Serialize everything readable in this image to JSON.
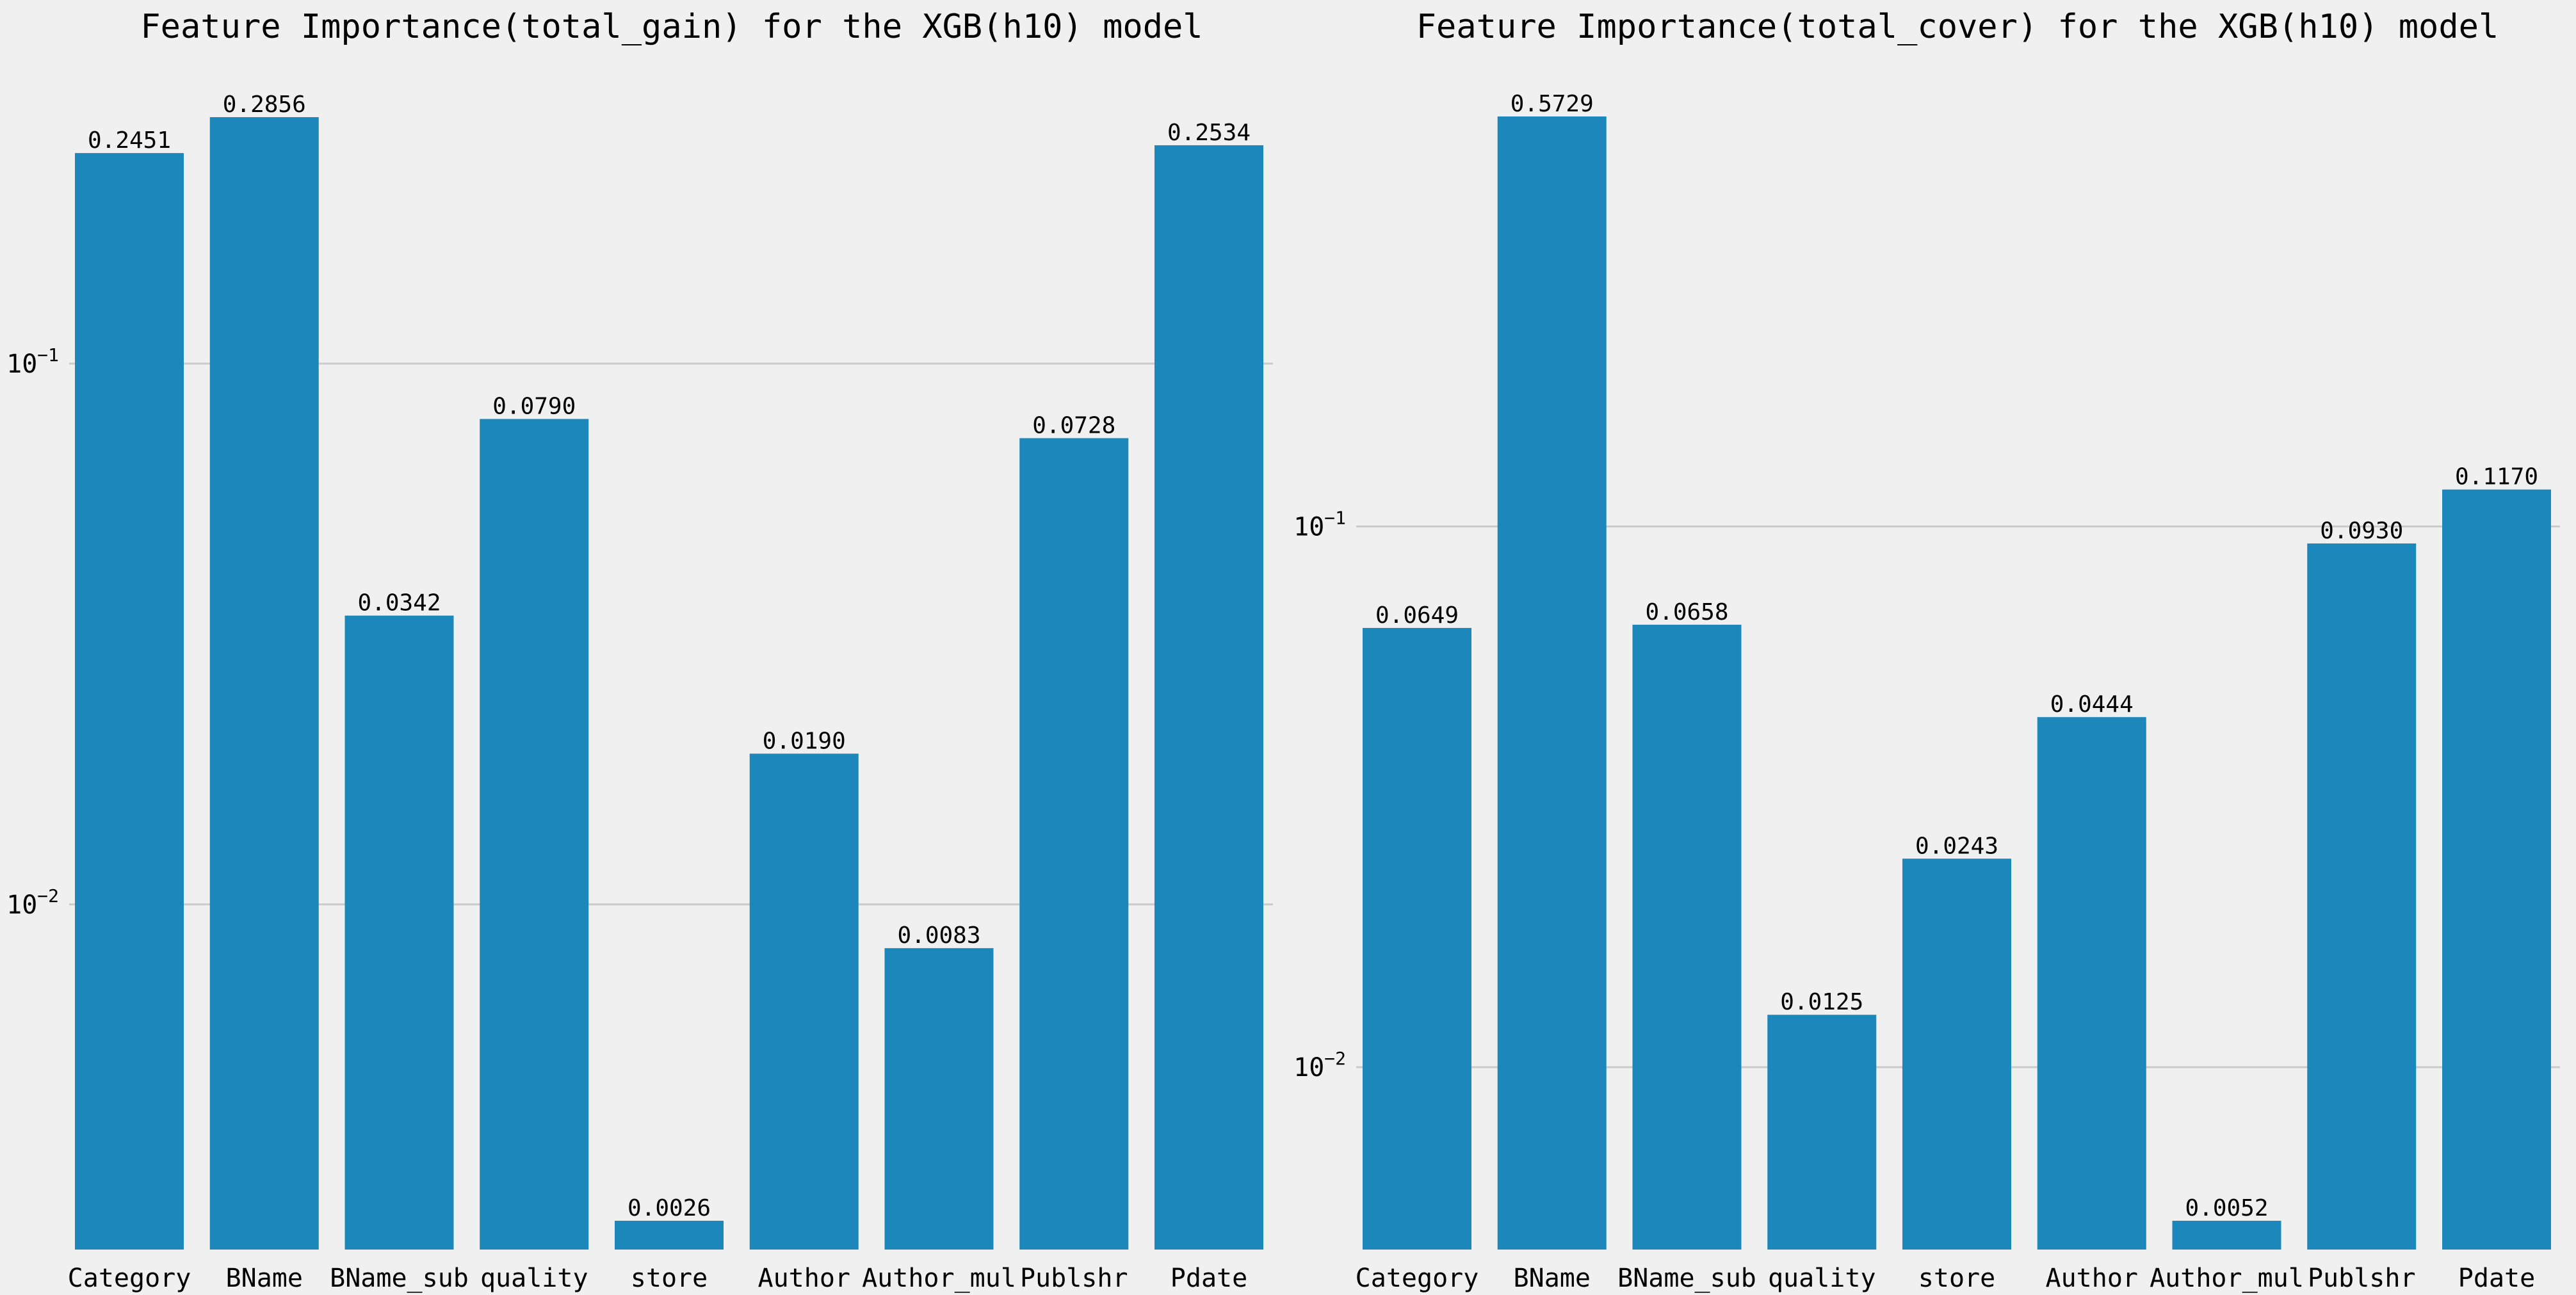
{
  "colors": {
    "background": "#f0f0f0",
    "bar": "#1b87ba",
    "grid": "#cbcbcb",
    "text": "#000000"
  },
  "chart_data": [
    {
      "type": "bar",
      "title": "Feature Importance(total_gain) for the XGB(h10) model",
      "xlabel": "",
      "ylabel": "",
      "yscale": "log",
      "ylim": [
        0.0023,
        0.33
      ],
      "yticks": [
        {
          "value": 0.1,
          "base": "10",
          "exp": "−1"
        },
        {
          "value": 0.01,
          "base": "10",
          "exp": "−2"
        }
      ],
      "grid": "horizontal",
      "categories": [
        "Category",
        "BName",
        "BName_sub",
        "quality",
        "store",
        "Author",
        "Author_mul",
        "Publshr",
        "Pdate"
      ],
      "values": [
        0.2451,
        0.2856,
        0.0342,
        0.079,
        0.0026,
        0.019,
        0.0083,
        0.0728,
        0.2534
      ],
      "labels": [
        "0.2451",
        "0.2856",
        "0.0342",
        "0.0790",
        "0.0026",
        "0.0190",
        "0.0083",
        "0.0728",
        "0.2534"
      ]
    },
    {
      "type": "bar",
      "title": "Feature Importance(total_cover) for the XGB(h10) model",
      "xlabel": "",
      "ylabel": "",
      "yscale": "log",
      "ylim": [
        0.0046,
        0.66
      ],
      "yticks": [
        {
          "value": 0.1,
          "base": "10",
          "exp": "−1"
        },
        {
          "value": 0.01,
          "base": "10",
          "exp": "−2"
        }
      ],
      "grid": "horizontal",
      "categories": [
        "Category",
        "BName",
        "BName_sub",
        "quality",
        "store",
        "Author",
        "Author_mul",
        "Publshr",
        "Pdate"
      ],
      "values": [
        0.0649,
        0.5729,
        0.0658,
        0.0125,
        0.0243,
        0.0444,
        0.0052,
        0.093,
        0.117
      ],
      "labels": [
        "0.0649",
        "0.5729",
        "0.0658",
        "0.0125",
        "0.0243",
        "0.0444",
        "0.0052",
        "0.0930",
        "0.1170"
      ]
    }
  ]
}
